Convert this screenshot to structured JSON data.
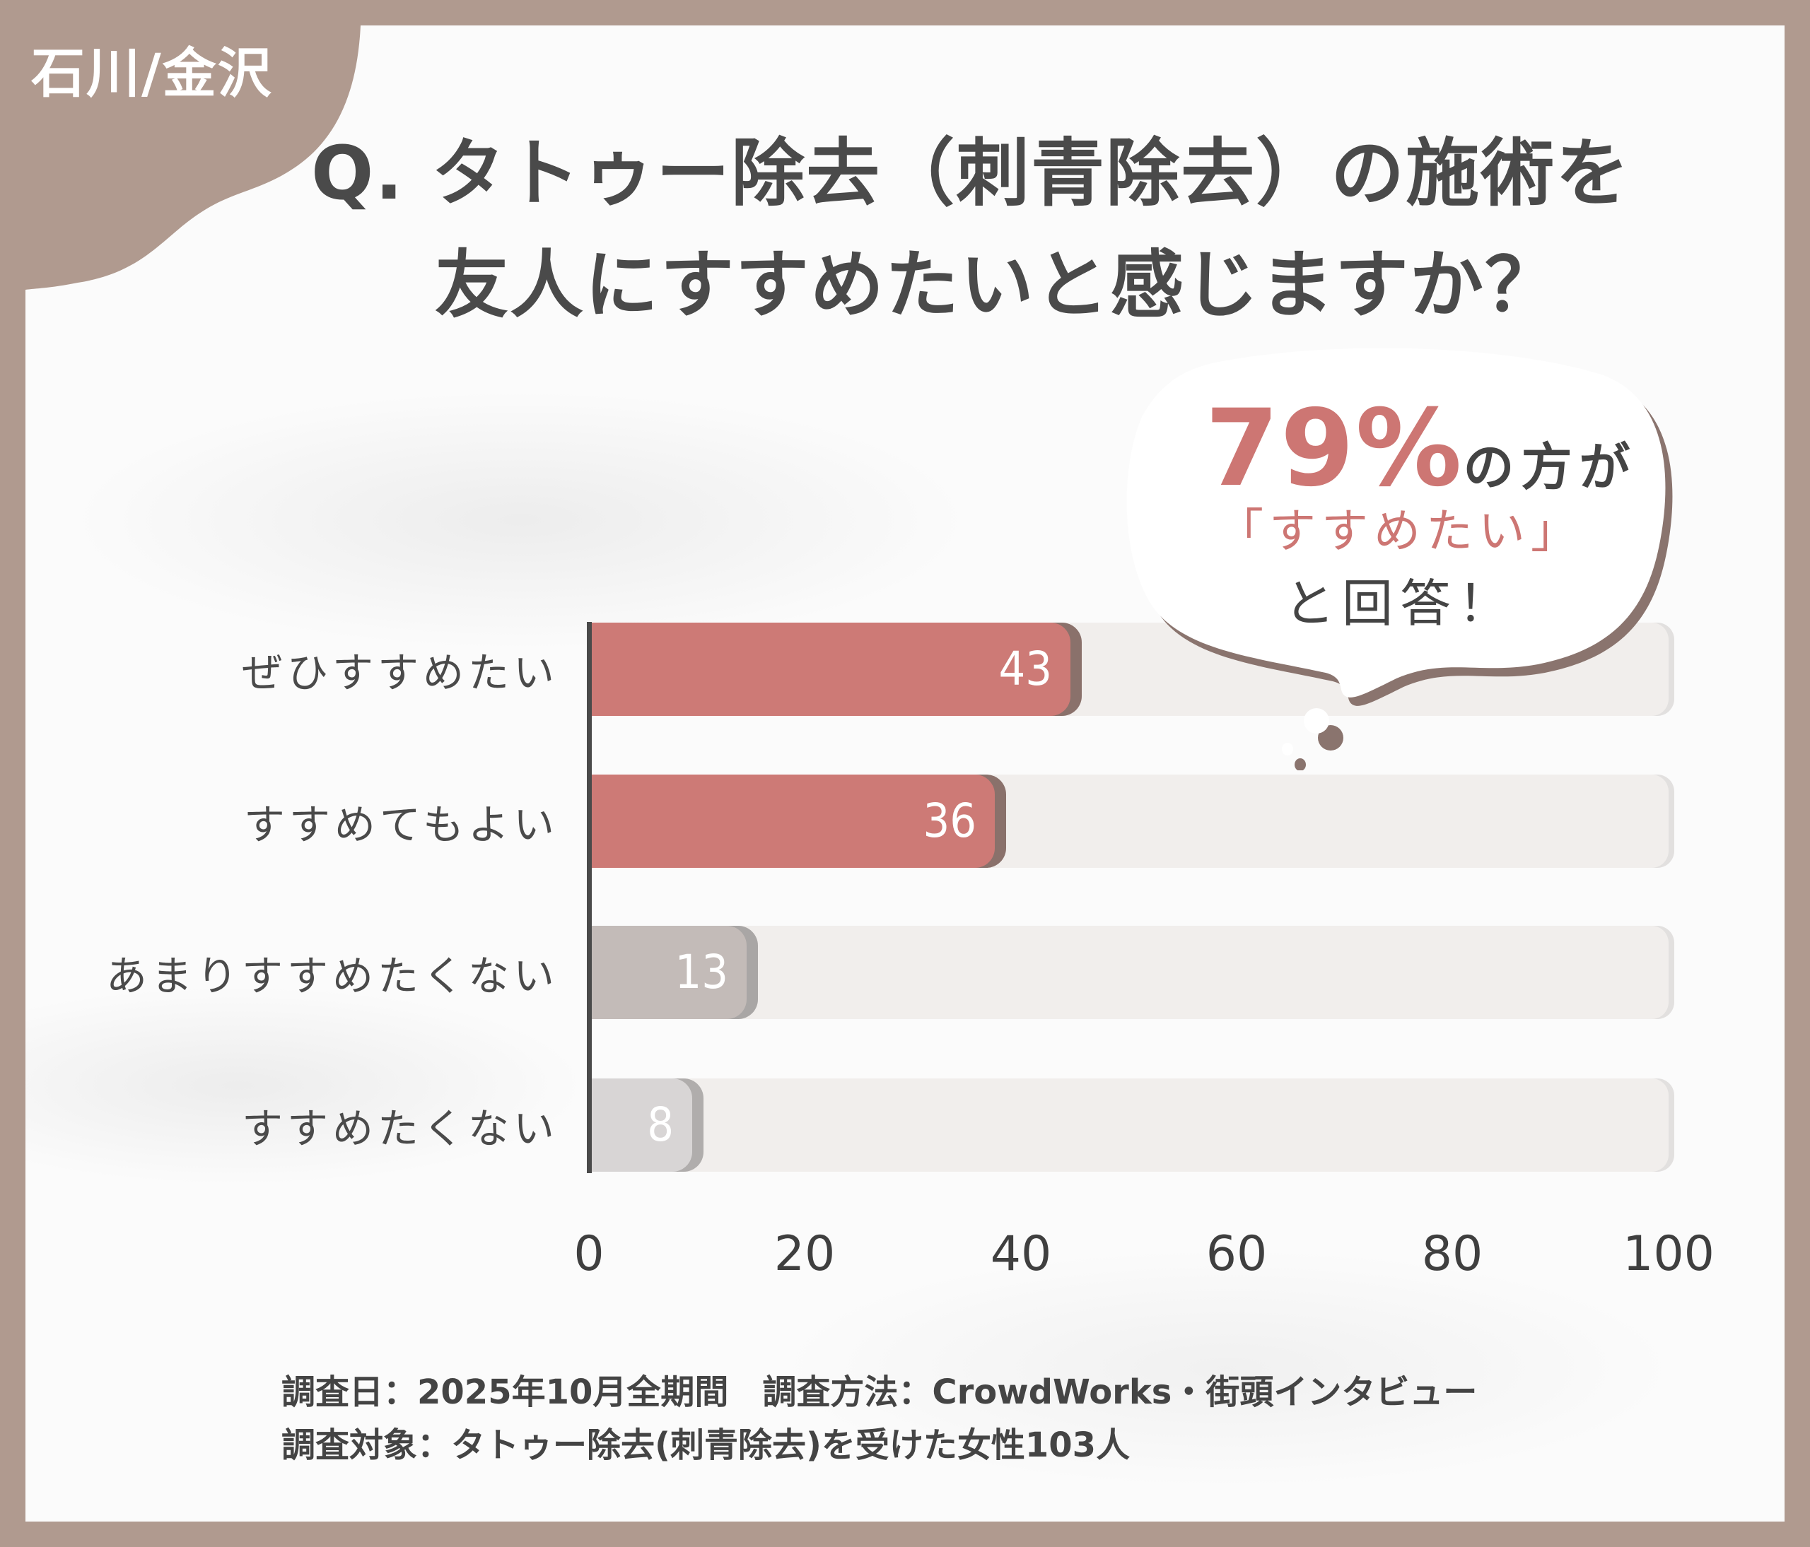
{
  "badge": {
    "label": "石川/金沢"
  },
  "title": {
    "line1": "Q. タトゥー除去（刺青除去）の施術を",
    "line2": "友人にすすめたいと感じますか？"
  },
  "callout": {
    "percent": "79%",
    "line1_rest": "の方が",
    "line2": "「すすめたい」",
    "line3": "と回答！"
  },
  "colors": {
    "frame": "#b09a8f",
    "accent": "#cd7a76",
    "bar_positive": "#cd7a76",
    "bar_positive_shadow": "#8a716b",
    "bar_neutral_dark": "#c3bbb8",
    "bar_neutral_dark_shadow": "#a9a6a5",
    "bar_neutral_light": "#d8d5d5",
    "bar_neutral_light_shadow": "#b0adac",
    "track": "#f1eeec",
    "text": "#4a4a4a"
  },
  "chart_data": {
    "type": "bar",
    "orientation": "horizontal",
    "title": "Q. タトゥー除去（刺青除去）の施術を友人にすすめたいと感じますか？",
    "categories": [
      "ぜひすすめたい",
      "すすめてもよい",
      "あまりすすめたくない",
      "すすめたくない"
    ],
    "values": [
      43,
      36,
      13,
      8
    ],
    "xlabel": "",
    "ylabel": "",
    "xlim": [
      0,
      100
    ],
    "xticks": [
      "0",
      "20",
      "40",
      "60",
      "80",
      "100"
    ],
    "grid": false,
    "legend": null,
    "annotations": [
      "79%の方が「すすめたい」と回答！"
    ],
    "units": "%"
  },
  "bars": [
    {
      "label": "ぜひすすめたい",
      "value": "43"
    },
    {
      "label": "すすめてもよい",
      "value": "36"
    },
    {
      "label": "あまりすすめたくない",
      "value": "13"
    },
    {
      "label": "すすめたくない",
      "value": "8"
    }
  ],
  "axis": {
    "ticks": [
      "0",
      "20",
      "40",
      "60",
      "80",
      "100"
    ]
  },
  "footer": {
    "line1": "調査日：2025年10月全期間　調査方法：CrowdWorks・街頭インタビュー",
    "line2": "調査対象：タトゥー除去(刺青除去)を受けた女性103人"
  }
}
